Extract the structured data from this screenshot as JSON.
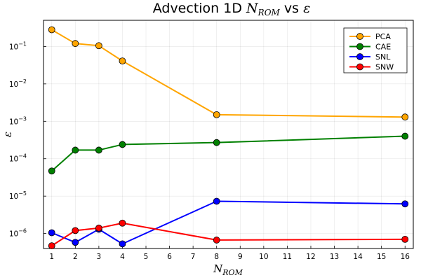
{
  "chart_data": {
    "type": "line",
    "title": "Advection 1D",
    "title_math": "N",
    "title_math_sub": "ROM",
    "title_vs": "vs",
    "title_eps": "ε",
    "xlabel": "N",
    "xlabel_sub": "ROM",
    "ylabel": "ε",
    "xlim": [
      0.65,
      16.35
    ],
    "ylog": true,
    "ylim_log10": [
      -6.4,
      -0.3
    ],
    "xticks": [
      1,
      2,
      3,
      4,
      5,
      6,
      7,
      8,
      9,
      10,
      11,
      12,
      13,
      14,
      15,
      16
    ],
    "yticks": [
      {
        "exp": -6,
        "base": "10",
        "sup": "−6"
      },
      {
        "exp": -5,
        "base": "10",
        "sup": "−5"
      },
      {
        "exp": -4,
        "base": "10",
        "sup": "−4"
      },
      {
        "exp": -3,
        "base": "10",
        "sup": "−3"
      },
      {
        "exp": -2,
        "base": "10",
        "sup": "−2"
      },
      {
        "exp": -1,
        "base": "10",
        "sup": "−1"
      }
    ],
    "grid": true,
    "legend_position": "top-right",
    "x": [
      1,
      2,
      3,
      4,
      8,
      16
    ],
    "series": [
      {
        "name": "PCA",
        "color": "#ffa500",
        "values": [
          0.28,
          0.12,
          0.105,
          0.041,
          0.0015,
          0.0013
        ]
      },
      {
        "name": "CAE",
        "color": "#008000",
        "values": [
          4.7e-05,
          0.00017,
          0.00017,
          0.00024,
          0.00027,
          0.0004
        ]
      },
      {
        "name": "SNL",
        "color": "#0000ff",
        "values": [
          1.05e-06,
          5.8e-07,
          1.3e-06,
          5.3e-07,
          7.3e-06,
          6.2e-06
        ]
      },
      {
        "name": "SNW",
        "color": "#ff0000",
        "values": [
          4.7e-07,
          1.2e-06,
          1.4e-06,
          1.9e-06,
          6.7e-07,
          7e-07
        ]
      }
    ]
  }
}
